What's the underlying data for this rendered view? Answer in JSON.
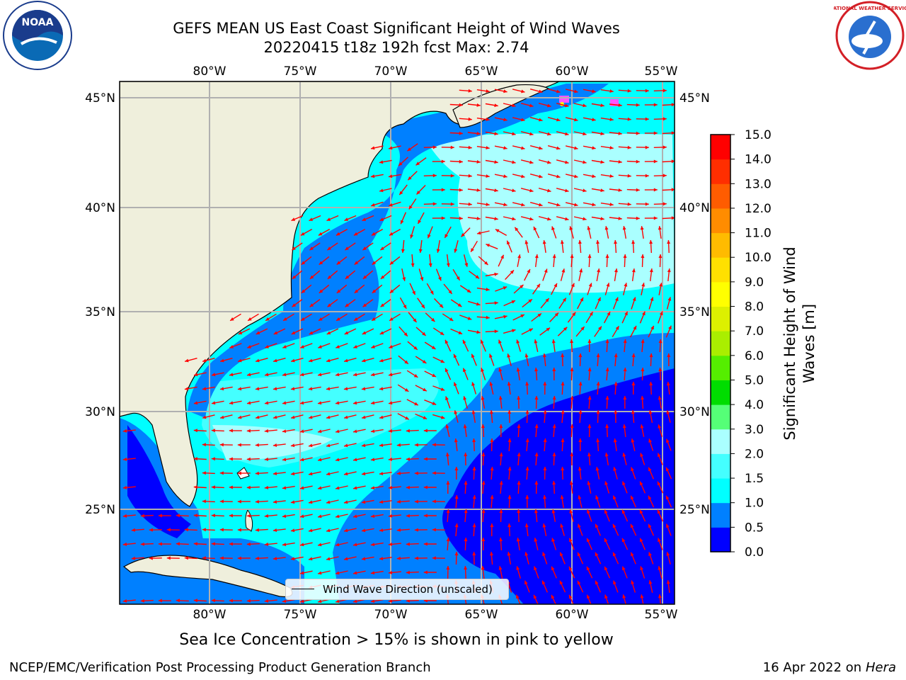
{
  "title": {
    "line1": "GEFS MEAN US East Coast Significant Height of Wind Waves",
    "line2": "20220415 t18z 192h fcst   Max: 2.74"
  },
  "axes": {
    "lon_labels": [
      "80°W",
      "75°W",
      "70°W",
      "65°W",
      "60°W",
      "55°W"
    ],
    "lat_labels": [
      "45°N",
      "40°N",
      "35°N",
      "30°N",
      "25°N"
    ]
  },
  "colorbar": {
    "label_line1": "Significant Height of Wind",
    "label_line2": "Waves [m]",
    "ticks": [
      "0.0",
      "0.5",
      "1.0",
      "1.5",
      "2.0",
      "3.0",
      "4.0",
      "5.0",
      "6.0",
      "7.0",
      "8.0",
      "9.0",
      "10.0",
      "11.0",
      "12.0",
      "13.0",
      "14.0",
      "15.0"
    ],
    "colors": [
      "#0000ff",
      "#0080ff",
      "#00ffff",
      "#44ffff",
      "#aaffff",
      "#55ff77",
      "#00dd00",
      "#55ee00",
      "#aaee00",
      "#ddf000",
      "#ffff00",
      "#ffe000",
      "#ffbb00",
      "#ff8c00",
      "#ff5c00",
      "#ff2e00",
      "#ff0000"
    ]
  },
  "legend": {
    "label": "Wind Wave Direction (unscaled)"
  },
  "caption": "Sea Ice Concentration > 15% is shown in pink to yellow",
  "footer": {
    "left": "NCEP/EMC/Verification Post Processing Product Generation Branch",
    "date": "16 Apr 2022 on",
    "host": "Hera"
  },
  "logos": {
    "left": "NOAA",
    "right": "NATIONAL WEATHER SERVICE"
  },
  "colors": {
    "land": "#efefdc",
    "arrow": "#ff0000",
    "grid": "#b0b0b0"
  }
}
